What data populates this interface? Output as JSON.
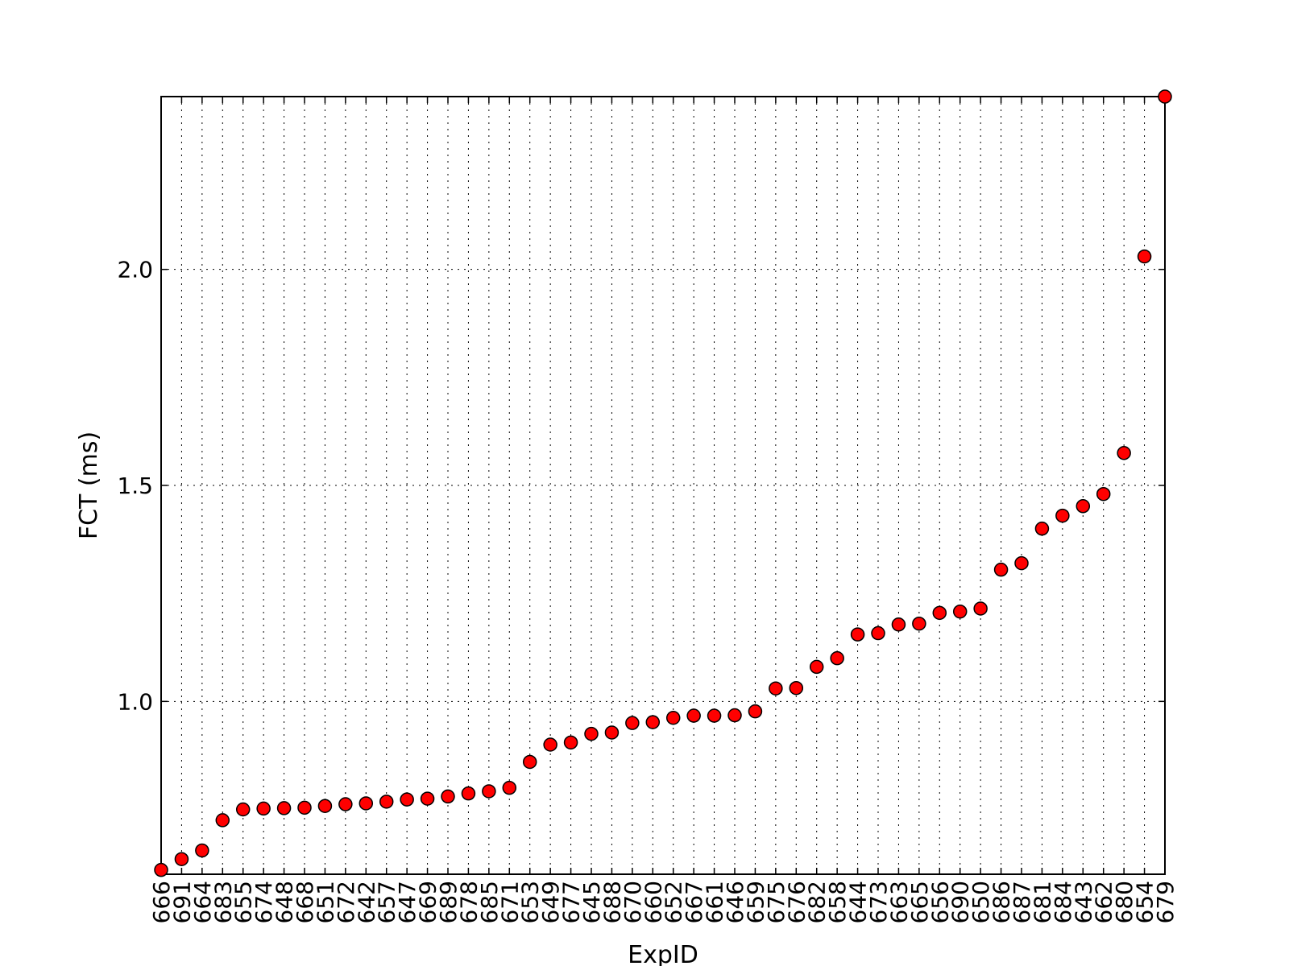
{
  "chart_data": {
    "type": "scatter",
    "title": "",
    "xlabel": "ExpID",
    "ylabel": "FCT (ms)",
    "categories": [
      "666",
      "691",
      "664",
      "683",
      "655",
      "674",
      "648",
      "668",
      "651",
      "672",
      "642",
      "657",
      "647",
      "669",
      "689",
      "678",
      "685",
      "671",
      "653",
      "649",
      "677",
      "645",
      "688",
      "670",
      "660",
      "652",
      "667",
      "661",
      "646",
      "659",
      "675",
      "676",
      "682",
      "658",
      "644",
      "673",
      "663",
      "665",
      "656",
      "690",
      "650",
      "686",
      "687",
      "681",
      "684",
      "643",
      "662",
      "680",
      "654",
      "679"
    ],
    "values": [
      0.61,
      0.635,
      0.655,
      0.725,
      0.75,
      0.752,
      0.753,
      0.754,
      0.758,
      0.762,
      0.764,
      0.768,
      0.773,
      0.775,
      0.78,
      0.787,
      0.792,
      0.8,
      0.86,
      0.9,
      0.905,
      0.925,
      0.928,
      0.95,
      0.952,
      0.962,
      0.967,
      0.967,
      0.968,
      0.977,
      1.03,
      1.031,
      1.08,
      1.1,
      1.155,
      1.158,
      1.178,
      1.18,
      1.205,
      1.208,
      1.215,
      1.305,
      1.32,
      1.4,
      1.43,
      1.452,
      1.48,
      1.575,
      2.03,
      2.4
    ],
    "yticks": [
      "1.0",
      "1.5",
      "2.0"
    ],
    "ylim": [
      0.6,
      2.4
    ],
    "grid": true,
    "marker_color": "#ff0000",
    "marker_edge_color": "#000000"
  }
}
